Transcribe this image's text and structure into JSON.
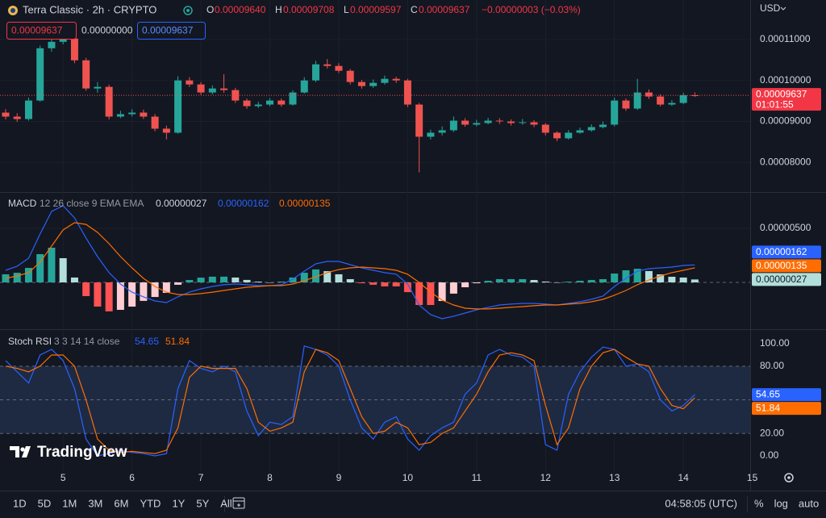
{
  "header": {
    "symbol": "Terra Classic · 2h · CRYPTO",
    "ohlc": [
      {
        "key": "O",
        "value": "0.00009640"
      },
      {
        "key": "H",
        "value": "0.00009708"
      },
      {
        "key": "L",
        "value": "0.00009597"
      },
      {
        "key": "C",
        "value": "0.00009637"
      }
    ],
    "change": "−0.00000003 (−0.03%)",
    "boxes": [
      "0.00009637",
      "0.00000000",
      "0.00009637"
    ],
    "currency": "USD",
    "price_badge": "0.00009637",
    "countdown": "01:01:55"
  },
  "chart_data": [
    {
      "type": "candlestick",
      "categories": [
        null,
        null,
        null,
        null,
        null,
        "5",
        null,
        null,
        null,
        null,
        null,
        "6",
        null,
        null,
        null,
        null,
        null,
        "7",
        null,
        null,
        null,
        null,
        null,
        "8",
        null,
        null,
        null,
        null,
        null,
        "9",
        null,
        null,
        null,
        null,
        null,
        "10",
        null,
        null,
        null,
        null,
        null,
        "11",
        null,
        null,
        null,
        null,
        null,
        "12",
        null,
        null,
        null,
        null,
        null,
        "13",
        null,
        null,
        null,
        null,
        null,
        "14",
        null,
        null,
        null,
        null,
        null,
        "15"
      ],
      "open": [
        9.216e-05,
        9.118e-05,
        9.059e-05,
        9.51e-05,
        0.00010784,
        0.00010941,
        0.00011019,
        0.0001049,
        9.804e-05,
        9.843e-05,
        9.118e-05,
        9.177e-05,
        9.216e-05,
        9.118e-05,
        8.824e-05,
        8.726e-05,
        0.0001,
        9.902e-05,
        9.706e-05,
        9.804e-05,
        9.765e-05,
        9.51e-05,
        9.373e-05,
        9.412e-05,
        9.51e-05,
        9.412e-05,
        9.706e-05,
        0.0001,
        0.00010392,
        0.00010353,
        0.00010235,
        9.961e-05,
        9.863e-05,
        9.941e-05,
        0.00010039,
        0.0001,
        9.412e-05,
        8.628e-05,
        8.726e-05,
        8.785e-05,
        9.02e-05,
        8.922e-05,
        8.961e-05,
        9.02e-05,
        9e-05,
        8.961e-05,
        8.981e-05,
        8.922e-05,
        8.726e-05,
        8.589e-05,
        8.726e-05,
        8.785e-05,
        8.863e-05,
        8.922e-05,
        9.51e-05,
        9.314e-05,
        9.706e-05,
        9.608e-05,
        9.412e-05,
        9.451e-05,
        9.64e-05,
        null,
        null,
        null,
        null,
        null
      ],
      "high": [
        9.3e-05,
        9.2e-05,
        9.58e-05,
        0.0001085,
        0.0001105,
        0.0001118,
        0.000111,
        0.0001055,
        9.96e-05,
        9.9e-05,
        9.26e-05,
        9.3e-05,
        9.29e-05,
        9.18e-05,
        8.9e-05,
        0.000101,
        0.0001008,
        9.96e-05,
        9.88e-05,
        0.0001015,
        9.82e-05,
        9.56e-05,
        9.48e-05,
        9.57e-05,
        9.56e-05,
        9.76e-05,
        0.0001008,
        0.0001048,
        0.0001052,
        0.0001042,
        0.0001028,
        0.0001001,
        0.0001002,
        0.0001012,
        0.0001009,
        0.0001004,
        9.45e-05,
        8.8e-05,
        8.88e-05,
        9.12e-05,
        9.08e-05,
        9.04e-05,
        9.09e-05,
        9.08e-05,
        9.05e-05,
        9.06e-05,
        9.03e-05,
        8.96e-05,
        8.76e-05,
        8.79e-05,
        8.85e-05,
        8.93e-05,
        9e-05,
        9.58e-05,
        9.56e-05,
        0.00010039,
        9.78e-05,
        9.66e-05,
        9.52e-05,
        9.7e-05,
        9.708e-05,
        null,
        null,
        null,
        null,
        null
      ],
      "low": [
        9.05e-05,
        8.99e-05,
        9.02e-05,
        9.48e-05,
        0.000107,
        0.0001088,
        0.0001042,
        9.75e-05,
        9.7e-05,
        9.05e-05,
        9.08e-05,
        9.12e-05,
        9.06e-05,
        8.76e-05,
        8.56e-05,
        8.7e-05,
        9.84e-05,
        9.65e-05,
        9.66e-05,
        9.7e-05,
        9.45e-05,
        9.31e-05,
        9.33e-05,
        9.37e-05,
        9.36e-05,
        9.39e-05,
        9.68e-05,
        9.96e-05,
        0.0001029,
        0.0001018,
        9.9e-05,
        9.8e-05,
        9.82e-05,
        9.9e-05,
        9.94e-05,
        9.35e-05,
        7.76e-05,
        8.56e-05,
        8.66e-05,
        8.74e-05,
        8.87e-05,
        8.88e-05,
        8.93e-05,
        8.94e-05,
        8.9e-05,
        8.92e-05,
        8.86e-05,
        8.66e-05,
        8.52e-05,
        8.56e-05,
        8.7e-05,
        8.75e-05,
        8.83e-05,
        8.88e-05,
        9.26e-05,
        9.28e-05,
        9.55e-05,
        9.37e-05,
        9.38e-05,
        9.42e-05,
        9.597e-05,
        null,
        null,
        null,
        null,
        null
      ],
      "close": [
        9.118e-05,
        9.059e-05,
        9.51e-05,
        0.00010784,
        0.00010941,
        0.00011019,
        0.0001049,
        9.804e-05,
        9.843e-05,
        9.118e-05,
        9.177e-05,
        9.216e-05,
        9.118e-05,
        8.824e-05,
        8.726e-05,
        0.0001,
        9.902e-05,
        9.706e-05,
        9.804e-05,
        9.765e-05,
        9.51e-05,
        9.373e-05,
        9.412e-05,
        9.51e-05,
        9.412e-05,
        9.706e-05,
        0.0001,
        0.00010392,
        0.00010353,
        0.00010235,
        9.961e-05,
        9.863e-05,
        9.941e-05,
        0.00010039,
        0.0001,
        9.412e-05,
        8.628e-05,
        8.726e-05,
        8.785e-05,
        9.02e-05,
        8.922e-05,
        8.961e-05,
        9.02e-05,
        9e-05,
        8.961e-05,
        8.981e-05,
        8.922e-05,
        8.726e-05,
        8.589e-05,
        8.726e-05,
        8.785e-05,
        8.863e-05,
        8.922e-05,
        9.51e-05,
        9.314e-05,
        9.706e-05,
        9.608e-05,
        9.412e-05,
        9.451e-05,
        9.64e-05,
        9.637e-05,
        null,
        null,
        null,
        null,
        null
      ],
      "up_color": "#26a69a",
      "down_color": "#ef5350",
      "ylim": [
        7.28e-05,
        0.0001196
      ],
      "yticks": [
        {
          "value": 0.00011,
          "label": "0.00011000"
        },
        {
          "value": 0.0001,
          "label": "0.00010000"
        },
        {
          "value": 9e-05,
          "label": "0.00009000"
        },
        {
          "value": 8e-05,
          "label": "0.00008000"
        }
      ],
      "grid": true
    },
    {
      "type": "macd",
      "title": "MACD",
      "subtitle": "12 26 close 9 EMA EMA",
      "series": [
        {
          "color": "#2962ff",
          "values": [
            1.12e-06,
            1.49e-06,
            2.24e-06,
            4.48e-06,
            6.57e-06,
            7.09e-06,
            5.97e-06,
            4.1e-06,
            2.39e-06,
            9e-07,
            -1.5e-07,
            -9e-07,
            -1.34e-06,
            -1.72e-06,
            -1.87e-06,
            -1.34e-06,
            -9e-07,
            -6e-07,
            -3.7e-07,
            -2.2e-07,
            -1.5e-07,
            -2.2e-07,
            -3e-07,
            -3e-07,
            -2.2e-07,
            3e-07,
            1.04e-06,
            1.72e-06,
            1.94e-06,
            1.94e-06,
            1.64e-06,
            1.34e-06,
            1.12e-06,
            9e-07,
            7.5e-07,
            -1.5e-07,
            -2.09e-06,
            -2.99e-06,
            -3.36e-06,
            -3.13e-06,
            -2.84e-06,
            -2.54e-06,
            -2.31e-06,
            -2.09e-06,
            -2.01e-06,
            -1.94e-06,
            -1.94e-06,
            -2.01e-06,
            -2.09e-06,
            -1.94e-06,
            -1.79e-06,
            -1.57e-06,
            -1.27e-06,
            -3.7e-07,
            3.7e-07,
            1.04e-06,
            1.27e-06,
            1.34e-06,
            1.42e-06,
            1.57e-06,
            1.62e-06,
            null,
            null,
            null,
            null,
            null
          ]
        },
        {
          "color": "#ff6d00",
          "values": [
            3.7e-07,
            6e-07,
            9e-07,
            1.87e-06,
            3.36e-06,
            4.85e-06,
            5.52e-06,
            5.37e-06,
            4.63e-06,
            3.58e-06,
            2.39e-06,
            1.34e-06,
            3.7e-07,
            -3.7e-07,
            -9e-07,
            -1.12e-06,
            -1.12e-06,
            -1.04e-06,
            -9e-07,
            -7.5e-07,
            -6e-07,
            -4.5e-07,
            -3.7e-07,
            -3e-07,
            -3e-07,
            -1.5e-07,
            1.5e-07,
            5.2e-07,
            9e-07,
            1.19e-06,
            1.34e-06,
            1.42e-06,
            1.34e-06,
            1.27e-06,
            1.12e-06,
            7.5e-07,
            0,
            -9e-07,
            -1.64e-06,
            -2.09e-06,
            -2.39e-06,
            -2.46e-06,
            -2.46e-06,
            -2.39e-06,
            -2.31e-06,
            -2.24e-06,
            -2.16e-06,
            -2.09e-06,
            -2.09e-06,
            -2.01e-06,
            -1.94e-06,
            -1.79e-06,
            -1.57e-06,
            -1.19e-06,
            -7.5e-07,
            -2.2e-07,
            2.2e-07,
            6e-07,
            9e-07,
            1.12e-06,
            1.35e-06,
            null,
            null,
            null,
            null,
            null
          ]
        }
      ],
      "histogram": {
        "values": [
          7.5e-07,
          8.9e-07,
          1.34e-06,
          2.61e-06,
          3.21e-06,
          2.24e-06,
          4.5e-07,
          -1.27e-06,
          -2.24e-06,
          -2.68e-06,
          -2.54e-06,
          -2.24e-06,
          -1.71e-06,
          -1.35e-06,
          -9.7e-07,
          -2.2e-07,
          2.2e-07,
          4.4e-07,
          5.3e-07,
          5.3e-07,
          4.5e-07,
          2.3e-07,
          7e-08,
          0,
          8e-08,
          4.5e-07,
          8.9e-07,
          1.2e-06,
          1.04e-06,
          7.5e-07,
          3e-07,
          -8e-08,
          -2.2e-07,
          -3.7e-07,
          -3.7e-07,
          -9e-07,
          -2.09e-06,
          -2.09e-06,
          -1.72e-06,
          -1.04e-06,
          -4.5e-07,
          -8e-08,
          1.5e-07,
          3e-07,
          3e-07,
          3e-07,
          2.2e-07,
          8e-08,
          0,
          7e-08,
          1.5e-07,
          2.2e-07,
          3e-07,
          8.2e-07,
          1.12e-06,
          1.26e-06,
          1.05e-06,
          7.4e-07,
          5.2e-07,
          4.5e-07,
          2.7e-07,
          null,
          null,
          null,
          null,
          null
        ],
        "last_label": "0.00000027",
        "colors": {
          "grow_above": "#26a69a",
          "fall_above": "#b2dfdb",
          "grow_below": "#ffcdd2",
          "fall_below": "#ff5252"
        }
      },
      "hlines": [
        0
      ],
      "ylim": [
        -4.33e-06,
        8.36e-06
      ],
      "yticks": [
        {
          "value": 5e-06,
          "label": "0.00000500"
        }
      ],
      "grid": true
    },
    {
      "type": "line",
      "title": "Stoch RSI",
      "subtitle": "3 3 14 14 close",
      "series": [
        {
          "color": "#2962ff",
          "values": [
            85,
            75,
            65,
            90,
            95,
            85,
            60,
            15,
            0,
            2,
            5,
            3,
            2,
            0,
            2,
            60,
            85,
            78,
            75,
            80,
            75,
            40,
            18,
            30,
            28,
            35,
            98,
            95,
            90,
            80,
            50,
            25,
            15,
            30,
            35,
            15,
            5,
            18,
            25,
            30,
            55,
            65,
            90,
            95,
            90,
            88,
            80,
            10,
            5,
            55,
            75,
            88,
            97,
            95,
            80,
            82,
            75,
            50,
            40,
            45,
            54.65,
            null,
            null,
            null,
            null,
            null
          ]
        },
        {
          "color": "#ff6d00",
          "values": [
            80,
            78,
            75,
            80,
            90,
            90,
            80,
            50,
            15,
            5,
            3,
            4,
            3,
            2,
            5,
            25,
            70,
            80,
            78,
            78,
            78,
            60,
            30,
            22,
            25,
            30,
            75,
            95,
            92,
            85,
            60,
            35,
            20,
            22,
            30,
            25,
            10,
            12,
            20,
            25,
            40,
            55,
            75,
            90,
            92,
            90,
            85,
            45,
            10,
            25,
            60,
            80,
            92,
            95,
            88,
            82,
            80,
            60,
            45,
            42,
            51.84,
            null,
            null,
            null,
            null,
            null
          ]
        }
      ],
      "hlines": [
        80,
        50,
        20
      ],
      "band_color": "#1e2a42",
      "ylim": [
        -14.4,
        113
      ],
      "yticks": [
        {
          "value": 100,
          "label": "100.00"
        },
        {
          "value": 80,
          "label": "80.00"
        },
        {
          "value": 20,
          "label": "20.00"
        },
        {
          "value": 0,
          "label": "0.00"
        }
      ],
      "grid": false
    }
  ],
  "footer": {
    "logo": "TradingView",
    "timeframes": [
      "1D",
      "5D",
      "1M",
      "3M",
      "6M",
      "YTD",
      "1Y",
      "5Y",
      "All"
    ],
    "time": "04:58:05 (UTC)",
    "scale_options": [
      "%",
      "log",
      "auto"
    ]
  }
}
